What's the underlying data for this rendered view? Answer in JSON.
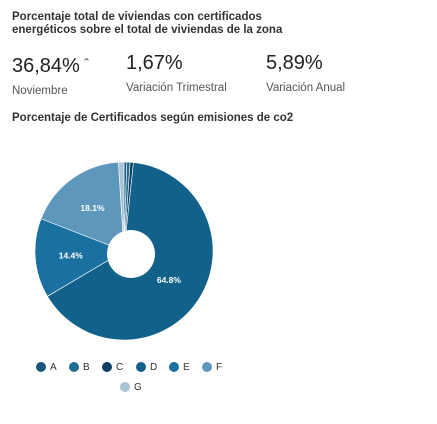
{
  "header": {
    "title": "Porcentaje total de viviendas con certificados energéticos sobre el total de viviendas de la zona"
  },
  "stats": [
    {
      "value": "36,84%",
      "arrow": "⌃",
      "label": "Noviembre"
    },
    {
      "value": "1,67%",
      "label": "Variación Trimestral"
    },
    {
      "value": "5,89%",
      "label": "Variación Anual"
    }
  ],
  "chart_title": "Porcentaje de Certificados según emisiones de co2",
  "chart_data": {
    "type": "pie",
    "title": "Porcentaje de Certificados según emisiones de co2",
    "legend_position": "bottom",
    "categories": [
      "A",
      "B",
      "C",
      "D",
      "E",
      "F",
      "G"
    ],
    "values": [
      0.5,
      0.6,
      0.6,
      64.8,
      14.4,
      18.1,
      1.0
    ],
    "colors": [
      "#15577f",
      "#1f6e92",
      "#0e3e63",
      "#12618a",
      "#1a70a0",
      "#5d97bb",
      "#a9c3d6"
    ],
    "data_labels": [
      "",
      "",
      "",
      "64.8%",
      "14.4%",
      "18.1%",
      ""
    ]
  }
}
